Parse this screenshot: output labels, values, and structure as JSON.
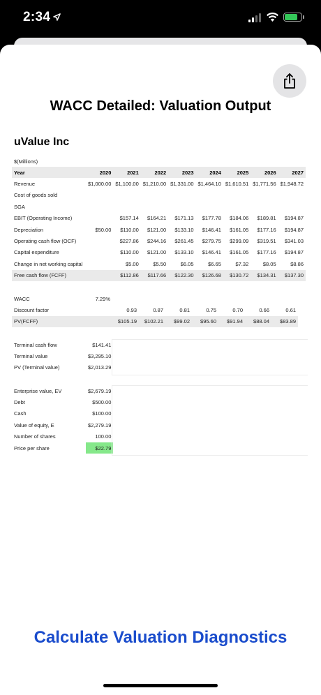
{
  "status": {
    "time": "2:34"
  },
  "page_title": "WACC Detailed: Valuation Output",
  "company": "uValue Inc",
  "units": "$(Millions)",
  "table": {
    "header": [
      "Year",
      "2020",
      "2021",
      "2022",
      "2023",
      "2024",
      "2025",
      "2026",
      "2027"
    ],
    "rows": [
      {
        "label": "Revenue",
        "values": [
          "$1,000.00",
          "$1,100.00",
          "$1,210.00",
          "$1,331.00",
          "$1,464.10",
          "$1,610.51",
          "$1,771.56",
          "$1,948.72"
        ]
      },
      {
        "label": "Cost of goods sold",
        "values": [
          "",
          "",
          "",
          "",
          "",
          "",
          "",
          ""
        ]
      },
      {
        "label": "SGA",
        "values": [
          "",
          "",
          "",
          "",
          "",
          "",
          "",
          ""
        ]
      },
      {
        "label": "EBIT (Operating Income)",
        "values": [
          "",
          "$157.14",
          "$164.21",
          "$171.13",
          "$177.78",
          "$184.06",
          "$189.81",
          "$194.87"
        ]
      },
      {
        "label": "Depreciation",
        "values": [
          "$50.00",
          "$110.00",
          "$121.00",
          "$133.10",
          "$146.41",
          "$161.05",
          "$177.16",
          "$194.87"
        ]
      },
      {
        "label": "Operating cash flow (OCF)",
        "values": [
          "",
          "$227.86",
          "$244.16",
          "$261.45",
          "$279.75",
          "$299.09",
          "$319.51",
          "$341.03"
        ]
      },
      {
        "label": "Capital expenditure",
        "values": [
          "",
          "$110.00",
          "$121.00",
          "$133.10",
          "$146.41",
          "$161.05",
          "$177.16",
          "$194.87"
        ]
      },
      {
        "label": "Change in net working capital",
        "values": [
          "",
          "$5.00",
          "$5.50",
          "$6.05",
          "$6.65",
          "$7.32",
          "$8.05",
          "$8.86"
        ]
      },
      {
        "label": "Free cash flow (FCFF)",
        "values": [
          "",
          "$112.86",
          "$117.66",
          "$122.30",
          "$126.68",
          "$130.72",
          "$134.31",
          "$137.30"
        ]
      }
    ]
  },
  "discount": {
    "wacc_label": "WACC",
    "wacc_value": "7.29%",
    "rows": [
      {
        "label": "Discount factor",
        "values": [
          "",
          "0.93",
          "0.87",
          "0.81",
          "0.75",
          "0.70",
          "0.66",
          "0.61"
        ]
      },
      {
        "label": "PV(FCFF)",
        "values": [
          "",
          "$105.19",
          "$102.21",
          "$99.02",
          "$95.60",
          "$91.94",
          "$88.04",
          "$83.89"
        ]
      }
    ]
  },
  "terminal": [
    {
      "label": "Terminal cash flow",
      "value": "$141.41"
    },
    {
      "label": "Terminal value",
      "value": "$3,295.10"
    },
    {
      "label": "PV (Terminal value)",
      "value": "$2,013.29"
    }
  ],
  "valuation": [
    {
      "label": "Enterprise value, EV",
      "value": "$2,679.19"
    },
    {
      "label": "Debt",
      "value": "$500.00"
    },
    {
      "label": "Cash",
      "value": "$100.00"
    },
    {
      "label": "Value of equity, E",
      "value": "$2,279.19"
    },
    {
      "label": "Number of shares",
      "value": "100.00"
    },
    {
      "label": "Price per share",
      "value": "$22.79"
    }
  ],
  "cta": "Calculate Valuation Diagnostics",
  "colors": {
    "accent": "#1a4ccc",
    "highlight": "#85e88a",
    "battery": "#34c759"
  }
}
